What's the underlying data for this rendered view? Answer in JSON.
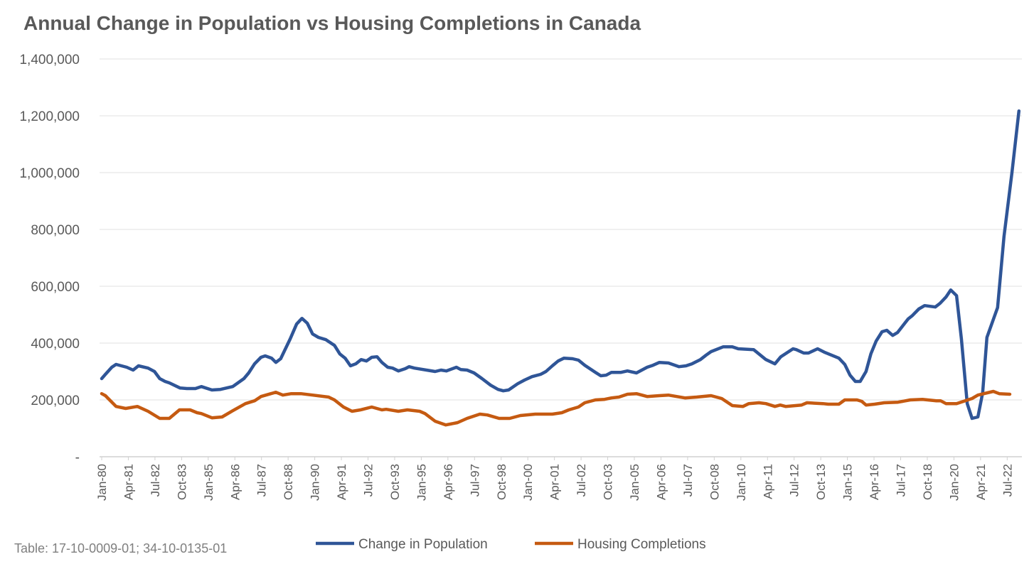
{
  "chart_data": {
    "type": "line",
    "title": "Annual Change in Population vs Housing Completions in Canada",
    "source_note": "Table: 17-10-0009-01; 34-10-0135-01",
    "xlabel": "",
    "ylabel": "",
    "x_unit": "quarters since Jan-80",
    "xlim": [
      0,
      172
    ],
    "ylim": [
      0,
      1400000
    ],
    "yticks": [
      0,
      200000,
      400000,
      600000,
      800000,
      1000000,
      1200000,
      1400000
    ],
    "ytick_labels": [
      "-",
      "200,000",
      "400,000",
      "600,000",
      "800,000",
      "1,000,000",
      "1,200,000",
      "1,400,000"
    ],
    "xtick_step": 5,
    "xtick_labels": [
      "Jan-80",
      "Apr-81",
      "Jul-82",
      "Oct-83",
      "Jan-85",
      "Apr-86",
      "Jul-87",
      "Oct-88",
      "Jan-90",
      "Apr-91",
      "Jul-92",
      "Oct-93",
      "Jan-95",
      "Apr-96",
      "Jul-97",
      "Oct-98",
      "Jan-00",
      "Apr-01",
      "Jul-02",
      "Oct-03",
      "Jan-05",
      "Apr-06",
      "Jul-07",
      "Oct-08",
      "Jan-10",
      "Apr-11",
      "Jul-12",
      "Oct-13",
      "Jan-15",
      "Apr-16",
      "Jul-17",
      "Oct-18",
      "Jan-20",
      "Apr-21",
      "Jul-22"
    ],
    "grid": true,
    "legend_position": "bottom",
    "series": [
      {
        "name": "Change in Population",
        "color": "#2f5597",
        "points": [
          [
            0,
            275000
          ],
          [
            0.7,
            290000
          ],
          [
            1.9,
            315000
          ],
          [
            2.7,
            325000
          ],
          [
            4.7,
            315000
          ],
          [
            5.9,
            305000
          ],
          [
            6.9,
            320000
          ],
          [
            8.7,
            312000
          ],
          [
            9.9,
            300000
          ],
          [
            10.9,
            275000
          ],
          [
            11.9,
            265000
          ],
          [
            12.7,
            260000
          ],
          [
            14.7,
            242000
          ],
          [
            16,
            240000
          ],
          [
            17.6,
            240000
          ],
          [
            18.7,
            247000
          ],
          [
            20.7,
            235000
          ],
          [
            22.3,
            237000
          ],
          [
            24.6,
            247000
          ],
          [
            26.7,
            275000
          ],
          [
            27.6,
            295000
          ],
          [
            28.7,
            327000
          ],
          [
            29.9,
            350000
          ],
          [
            30.7,
            355000
          ],
          [
            31.9,
            347000
          ],
          [
            32.7,
            332000
          ],
          [
            33.6,
            345000
          ],
          [
            35.4,
            415000
          ],
          [
            36.6,
            467000
          ],
          [
            37.6,
            487000
          ],
          [
            38.6,
            470000
          ],
          [
            39.6,
            432000
          ],
          [
            40.7,
            420000
          ],
          [
            42.1,
            412000
          ],
          [
            43.7,
            392000
          ],
          [
            44.7,
            362000
          ],
          [
            45.7,
            347000
          ],
          [
            46.7,
            320000
          ],
          [
            47.7,
            327000
          ],
          [
            48.7,
            342000
          ],
          [
            49.7,
            337000
          ],
          [
            50.7,
            350000
          ],
          [
            51.7,
            352000
          ],
          [
            52.6,
            332000
          ],
          [
            53.7,
            315000
          ],
          [
            54.6,
            312000
          ],
          [
            55.7,
            302000
          ],
          [
            57.0,
            310000
          ],
          [
            57.7,
            317000
          ],
          [
            58.7,
            312000
          ],
          [
            62.6,
            300000
          ],
          [
            63.7,
            305000
          ],
          [
            64.7,
            302000
          ],
          [
            66.6,
            315000
          ],
          [
            67.4,
            307000
          ],
          [
            68.6,
            305000
          ],
          [
            69.9,
            295000
          ],
          [
            71.4,
            275000
          ],
          [
            73.0,
            252000
          ],
          [
            74.4,
            237000
          ],
          [
            75.4,
            232000
          ],
          [
            76.4,
            235000
          ],
          [
            78.1,
            257000
          ],
          [
            79.4,
            270000
          ],
          [
            80.8,
            282000
          ],
          [
            82.4,
            290000
          ],
          [
            83.4,
            300000
          ],
          [
            84.6,
            320000
          ],
          [
            85.7,
            337000
          ],
          [
            86.8,
            347000
          ],
          [
            88.4,
            345000
          ],
          [
            89.5,
            340000
          ],
          [
            90.7,
            322000
          ],
          [
            91.5,
            312000
          ],
          [
            92.7,
            297000
          ],
          [
            93.7,
            285000
          ],
          [
            94.7,
            287000
          ],
          [
            95.7,
            297000
          ],
          [
            97.5,
            297000
          ],
          [
            98.7,
            302000
          ],
          [
            100.4,
            295000
          ],
          [
            102.4,
            315000
          ],
          [
            103.5,
            322000
          ],
          [
            104.7,
            332000
          ],
          [
            106.4,
            330000
          ],
          [
            108.4,
            317000
          ],
          [
            109.7,
            320000
          ],
          [
            110.8,
            327000
          ],
          [
            112.4,
            342000
          ],
          [
            113.5,
            358000
          ],
          [
            114.4,
            370000
          ],
          [
            116.7,
            387000
          ],
          [
            118.4,
            387000
          ],
          [
            119.5,
            380000
          ],
          [
            122.4,
            377000
          ],
          [
            124.7,
            342000
          ],
          [
            126.4,
            327000
          ],
          [
            127.5,
            352000
          ],
          [
            129.8,
            380000
          ],
          [
            130.4,
            377000
          ],
          [
            131.8,
            365000
          ],
          [
            132.7,
            365000
          ],
          [
            134.4,
            380000
          ],
          [
            135.8,
            367000
          ],
          [
            138.4,
            347000
          ],
          [
            139.5,
            325000
          ],
          [
            140.5,
            287000
          ],
          [
            141.5,
            265000
          ],
          [
            142.4,
            265000
          ],
          [
            143.5,
            300000
          ],
          [
            144.4,
            362000
          ],
          [
            145.4,
            407000
          ],
          [
            146.5,
            440000
          ],
          [
            147.4,
            445000
          ],
          [
            148.5,
            427000
          ],
          [
            149.4,
            437000
          ],
          [
            151.4,
            485000
          ],
          [
            152.2,
            497000
          ],
          [
            153.4,
            520000
          ],
          [
            154.5,
            532000
          ],
          [
            156.5,
            527000
          ],
          [
            157.4,
            540000
          ],
          [
            158.5,
            562000
          ],
          [
            159.4,
            587000
          ],
          [
            160.5,
            567000
          ],
          [
            161.4,
            415000
          ],
          [
            162.5,
            187000
          ],
          [
            163.4,
            135000
          ],
          [
            164.5,
            140000
          ],
          [
            165.4,
            225000
          ],
          [
            166.2,
            420000
          ],
          [
            168.2,
            525000
          ],
          [
            169.4,
            775000
          ],
          [
            170.9,
            1000000
          ],
          [
            172.2,
            1217000
          ]
        ]
      },
      {
        "name": "Housing Completions",
        "color": "#c55a11",
        "points": [
          [
            0,
            222000
          ],
          [
            0.7,
            215000
          ],
          [
            2.7,
            177000
          ],
          [
            4.5,
            170000
          ],
          [
            6.7,
            177000
          ],
          [
            8.7,
            160000
          ],
          [
            10.9,
            135000
          ],
          [
            12.7,
            135000
          ],
          [
            14.6,
            165000
          ],
          [
            16.6,
            165000
          ],
          [
            17.9,
            155000
          ],
          [
            18.7,
            152000
          ],
          [
            20.7,
            137000
          ],
          [
            22.6,
            140000
          ],
          [
            24.6,
            162000
          ],
          [
            27.0,
            187000
          ],
          [
            28.7,
            197000
          ],
          [
            29.9,
            212000
          ],
          [
            32.7,
            227000
          ],
          [
            34.0,
            217000
          ],
          [
            35.6,
            222000
          ],
          [
            37.4,
            222000
          ],
          [
            39.6,
            217000
          ],
          [
            42.6,
            210000
          ],
          [
            43.7,
            200000
          ],
          [
            45.4,
            175000
          ],
          [
            47.0,
            160000
          ],
          [
            48.6,
            165000
          ],
          [
            50.7,
            175000
          ],
          [
            52.6,
            165000
          ],
          [
            53.4,
            167000
          ],
          [
            55.7,
            160000
          ],
          [
            57.4,
            165000
          ],
          [
            59.7,
            160000
          ],
          [
            60.7,
            152000
          ],
          [
            62.6,
            125000
          ],
          [
            64.6,
            112000
          ],
          [
            66.8,
            120000
          ],
          [
            68.6,
            135000
          ],
          [
            71.0,
            150000
          ],
          [
            72.4,
            147000
          ],
          [
            74.6,
            135000
          ],
          [
            76.6,
            135000
          ],
          [
            78.6,
            145000
          ],
          [
            81.4,
            150000
          ],
          [
            84.6,
            150000
          ],
          [
            86.4,
            155000
          ],
          [
            87.7,
            165000
          ],
          [
            89.5,
            175000
          ],
          [
            90.7,
            190000
          ],
          [
            92.7,
            200000
          ],
          [
            94.4,
            202000
          ],
          [
            95.7,
            207000
          ],
          [
            97.1,
            210000
          ],
          [
            98.7,
            220000
          ],
          [
            100.4,
            222000
          ],
          [
            102.4,
            212000
          ],
          [
            104.7,
            215000
          ],
          [
            106.4,
            217000
          ],
          [
            109.5,
            207000
          ],
          [
            111.7,
            210000
          ],
          [
            114.4,
            215000
          ],
          [
            116.4,
            205000
          ],
          [
            118.4,
            180000
          ],
          [
            120.4,
            177000
          ],
          [
            121.5,
            187000
          ],
          [
            123.4,
            190000
          ],
          [
            124.7,
            187000
          ],
          [
            126.4,
            177000
          ],
          [
            127.4,
            182000
          ],
          [
            128.4,
            177000
          ],
          [
            131.4,
            182000
          ],
          [
            132.4,
            190000
          ],
          [
            135.4,
            187000
          ],
          [
            136.4,
            185000
          ],
          [
            138.4,
            185000
          ],
          [
            139.5,
            200000
          ],
          [
            141.8,
            200000
          ],
          [
            142.7,
            195000
          ],
          [
            143.5,
            182000
          ],
          [
            145.1,
            185000
          ],
          [
            146.9,
            190000
          ],
          [
            149.5,
            192000
          ],
          [
            151.8,
            200000
          ],
          [
            154.1,
            202000
          ],
          [
            156.7,
            197000
          ],
          [
            157.5,
            197000
          ],
          [
            158.5,
            187000
          ],
          [
            160.5,
            187000
          ],
          [
            163.4,
            205000
          ],
          [
            164.5,
            217000
          ],
          [
            167.4,
            230000
          ],
          [
            168.5,
            222000
          ],
          [
            170.5,
            220000
          ]
        ]
      }
    ]
  }
}
